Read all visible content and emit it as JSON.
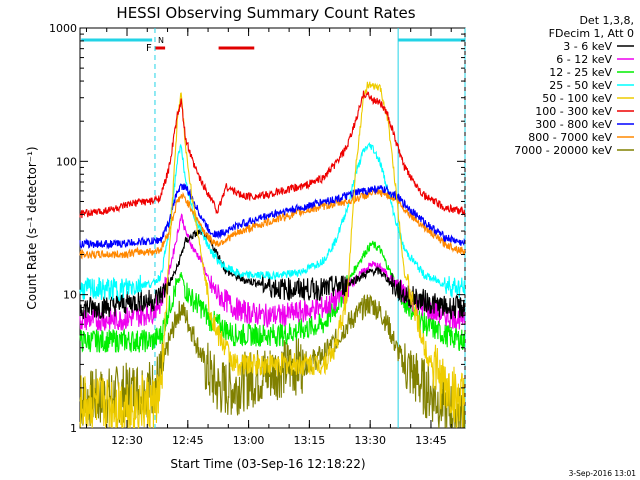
{
  "chart_data": {
    "type": "line",
    "title": "HESSI Observing Summary Count Rates",
    "xlabel": "Start Time (03-Sep-16 12:18:22)",
    "ylabel": "Count Rate (s⁻¹ detector⁻¹)",
    "y_scale": "log",
    "ylim": [
      1,
      1000
    ],
    "xlim_minutes": [
      0,
      95
    ],
    "x_tick_labels": [
      "12:30",
      "12:45",
      "13:00",
      "13:15",
      "13:30",
      "13:45"
    ],
    "x_tick_minutes": [
      11.6,
      26.6,
      41.6,
      56.6,
      71.6,
      86.6
    ],
    "y_tick_labels": [
      "1",
      "10",
      "100",
      "1000"
    ],
    "y_tick_values": [
      1,
      10,
      100,
      1000
    ],
    "legend_header": [
      "Det 1,3,8,",
      "FDecim 1, Att 0"
    ],
    "legend_position": "top-right-outside",
    "flags": {
      "F_label": "F",
      "N_label": "N"
    },
    "x_minutes": [
      0,
      5,
      10,
      15,
      18,
      20,
      22,
      24,
      25,
      26,
      28,
      30,
      32,
      34,
      36,
      38,
      40,
      45,
      50,
      55,
      60,
      63,
      66,
      68,
      70,
      71,
      72,
      74,
      76,
      78,
      80,
      85,
      90,
      95
    ],
    "series": [
      {
        "name": "3 - 6 keV",
        "color": "#000000",
        "values": [
          8,
          8,
          8.5,
          9,
          9,
          10,
          12,
          16,
          20,
          25,
          28,
          30,
          25,
          20,
          15,
          14,
          13,
          12,
          11,
          11,
          11,
          11.5,
          12,
          13,
          14,
          14.5,
          15,
          15,
          13,
          11,
          10,
          9,
          8,
          8
        ]
      },
      {
        "name": "6 - 12 keV",
        "color": "#ee00ee",
        "values": [
          6.5,
          6.5,
          6.5,
          7,
          7.5,
          9,
          15,
          28,
          40,
          30,
          22,
          18,
          12,
          10,
          9,
          8,
          7.5,
          7,
          7,
          7.5,
          8,
          9,
          11,
          13,
          15,
          16,
          17,
          16,
          14,
          12,
          10,
          8,
          7,
          6.5
        ]
      },
      {
        "name": "12 - 25 keV",
        "color": "#00ee00",
        "values": [
          4.5,
          4.5,
          4.5,
          4.5,
          4.5,
          5,
          8,
          12,
          14,
          11,
          9,
          8,
          6.5,
          6,
          5.5,
          5,
          5,
          5,
          5,
          5.5,
          6,
          8,
          12,
          16,
          20,
          22,
          24,
          22,
          16,
          12,
          9,
          6,
          5,
          4.5
        ]
      },
      {
        "name": "25 - 50 keV",
        "color": "#00ffff",
        "values": [
          11,
          11,
          11,
          12,
          12,
          14,
          30,
          100,
          135,
          70,
          40,
          30,
          22,
          18,
          16,
          15,
          14,
          14,
          14,
          15,
          18,
          25,
          45,
          80,
          120,
          130,
          130,
          100,
          60,
          35,
          22,
          14,
          12,
          11
        ]
      },
      {
        "name": "50 - 100 keV",
        "color": "#eecc00",
        "values": [
          1.5,
          1.5,
          1.5,
          1.5,
          1.5,
          1.8,
          20,
          200,
          330,
          130,
          45,
          20,
          8,
          5,
          4,
          3,
          3,
          3,
          3,
          3,
          3,
          4,
          10,
          90,
          300,
          380,
          360,
          360,
          200,
          60,
          15,
          4,
          2,
          1.5
        ]
      },
      {
        "name": "100 - 300 keV",
        "color": "#ee0000",
        "values": [
          40,
          42,
          45,
          50,
          50,
          55,
          90,
          220,
          280,
          150,
          95,
          70,
          55,
          42,
          65,
          60,
          55,
          55,
          60,
          65,
          75,
          95,
          130,
          200,
          320,
          320,
          290,
          280,
          220,
          140,
          90,
          55,
          45,
          42
        ]
      },
      {
        "name": "300 - 800 keV",
        "color": "#0000ff",
        "values": [
          24,
          24,
          24,
          25,
          25,
          26,
          35,
          60,
          65,
          65,
          50,
          38,
          30,
          28,
          30,
          32,
          34,
          38,
          42,
          45,
          50,
          52,
          55,
          58,
          60,
          60,
          62,
          62,
          60,
          55,
          48,
          35,
          27,
          24
        ]
      },
      {
        "name": "800 - 7000 keV",
        "color": "#ff8800",
        "values": [
          20,
          20,
          20,
          21,
          21,
          22,
          30,
          50,
          55,
          52,
          42,
          32,
          26,
          24,
          26,
          28,
          30,
          34,
          38,
          42,
          46,
          48,
          50,
          52,
          55,
          56,
          58,
          58,
          56,
          52,
          44,
          32,
          24,
          21
        ]
      },
      {
        "name": "7000 - 20000 keV",
        "color": "#808000",
        "values": [
          1.6,
          1.7,
          1.8,
          2,
          2,
          2.5,
          4.5,
          7,
          8,
          7,
          5,
          3.5,
          2.5,
          2,
          2,
          2,
          2.2,
          2.5,
          2.8,
          3,
          3.5,
          4.5,
          6,
          7,
          8,
          8.5,
          8.5,
          7.5,
          6,
          4,
          3,
          2,
          1.5,
          1.2
        ]
      }
    ]
  },
  "footer_timestamp": "3-Sep-2016 13:01"
}
